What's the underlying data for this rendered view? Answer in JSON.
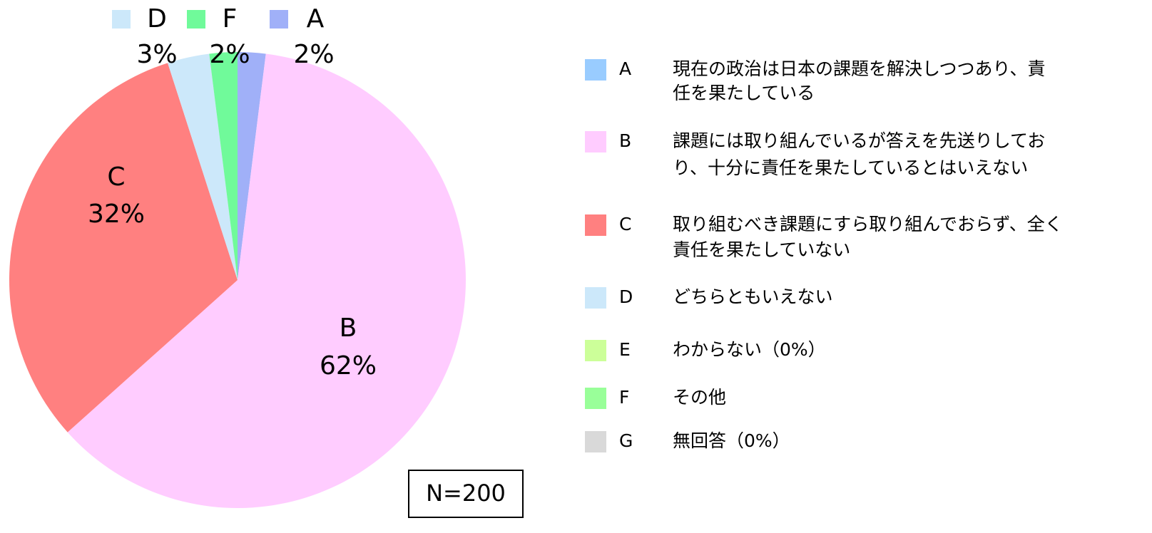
{
  "chart_data": {
    "type": "pie",
    "categories": [
      "A",
      "B",
      "C",
      "D",
      "E",
      "F",
      "G"
    ],
    "values": [
      2,
      62,
      32,
      3,
      0,
      2,
      0
    ],
    "value_labels": [
      "2%",
      "62%",
      "32%",
      "3%",
      null,
      "2%",
      null
    ],
    "colors": [
      "#a0b0f8",
      "#ffccff",
      "#ff8080",
      "#cce8fa",
      "#ccff99",
      "#70fa9a",
      "#d9d9d9"
    ],
    "legend_colors": [
      "#99ccff",
      "#ffccff",
      "#ff8080",
      "#cce8fa",
      "#ccff99",
      "#99ff99",
      "#d9d9d9"
    ],
    "descriptions": [
      [
        "現在の政治は日本の課題を解決しつつあり、責",
        "任を果たしている"
      ],
      [
        "課題には取り組んでいるが答えを先送りしてお",
        "り、十分に責任を果たしているとはいえない"
      ],
      [
        "取り組むべき課題にすら取り組んでおらず、全く",
        "責任を果たしていない"
      ],
      [
        "どちらともいえない"
      ],
      [
        "わからない（0%）"
      ],
      [
        "その他"
      ],
      [
        "無回答（0%）"
      ]
    ],
    "annotation": "N=200"
  }
}
